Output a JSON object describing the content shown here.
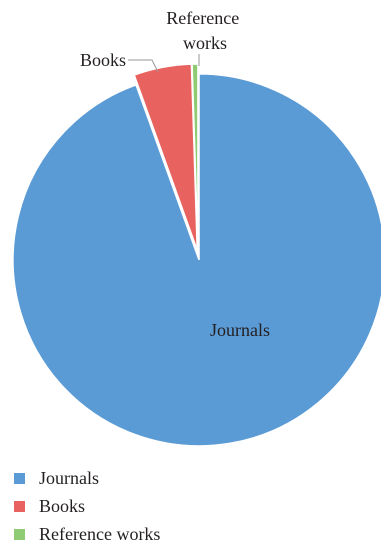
{
  "chart_data": {
    "type": "pie",
    "series": [
      {
        "name": "Journals",
        "value": 94.5,
        "color": "#5B9BD5"
      },
      {
        "name": "Books",
        "value": 5.0,
        "color": "#E8635F"
      },
      {
        "name": "Reference works",
        "value": 0.5,
        "color": "#8FCB72"
      }
    ],
    "slice_labels": [
      "Journals",
      "Books",
      "Reference works"
    ],
    "legend_position": "bottom-left",
    "exploded": true
  }
}
